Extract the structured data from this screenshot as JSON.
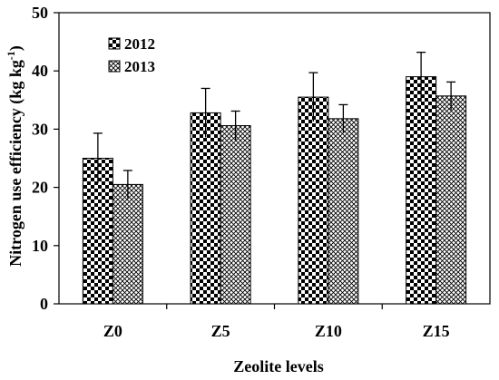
{
  "chart_data": {
    "type": "bar",
    "xlabel": "Zeolite levels",
    "ylabel": "Nitrogen use efficiency (kg kg",
    "ylabel_sup": "-1",
    "ylabel_close": ")",
    "ylim": [
      0,
      50
    ],
    "yticks": [
      0,
      10,
      20,
      30,
      40,
      50
    ],
    "categories": [
      "Z0",
      "Z5",
      "Z10",
      "Z15"
    ],
    "series": [
      {
        "name": "2012",
        "pattern": "checker",
        "values": [
          25.0,
          32.8,
          35.5,
          39.0
        ],
        "errors": [
          4.3,
          4.2,
          4.2,
          4.2
        ]
      },
      {
        "name": "2013",
        "pattern": "crosshatch",
        "values": [
          20.5,
          30.6,
          31.8,
          35.7
        ],
        "errors": [
          2.4,
          2.5,
          2.4,
          2.4
        ]
      }
    ],
    "legend_position": "top-left",
    "grid": false,
    "colors": {
      "bar_fill": "#ffffff",
      "pattern": "#000000",
      "axis": "#000000"
    }
  }
}
